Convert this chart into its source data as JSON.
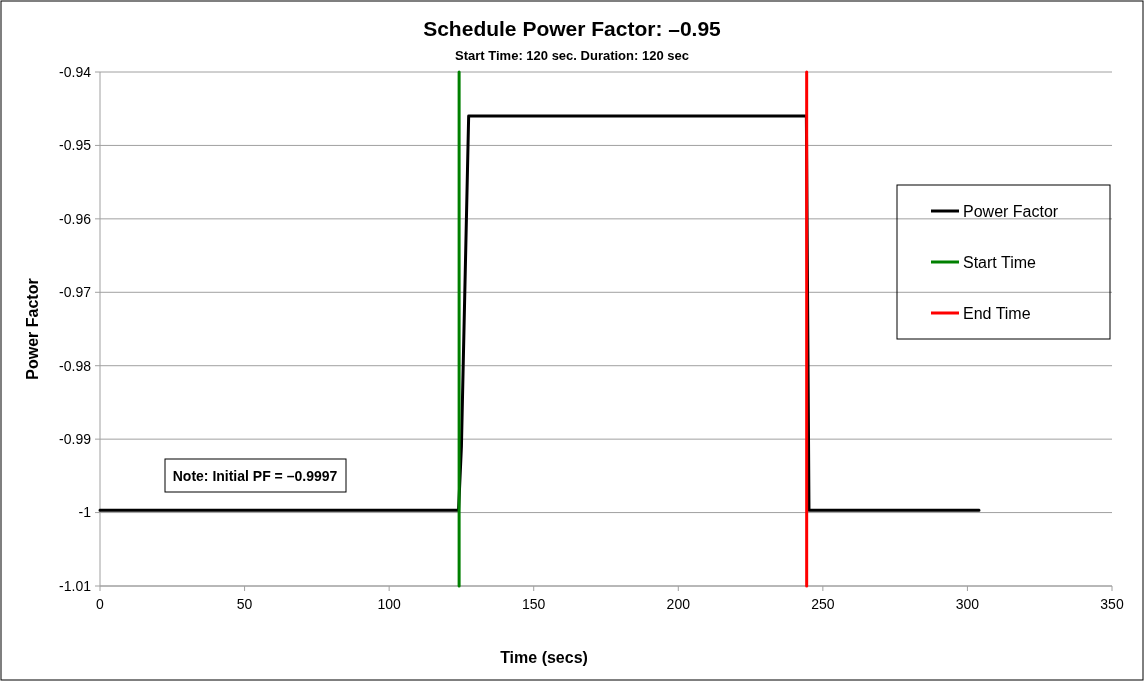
{
  "chart_data": {
    "type": "line",
    "title": "Schedule Power Factor: –0.95",
    "subtitle": "Start Time: 120 sec. Duration: 120 sec",
    "xlabel": "Time (secs)",
    "ylabel": "Power Factor",
    "series": [
      {
        "name": "Power Factor",
        "color": "#000000",
        "x": [
          0,
          124,
          125,
          127.5,
          244.3,
          245.2,
          304
        ],
        "values": [
          -0.9997,
          -0.9997,
          -0.991,
          -0.946,
          -0.946,
          -0.9997,
          -0.9997
        ]
      },
      {
        "name": "Start Time",
        "color": "#008000",
        "x": [
          124.2,
          124.2
        ],
        "values": [
          -1.01,
          -0.94
        ]
      },
      {
        "name": "End Time",
        "color": "#ff0000",
        "x": [
          244.4,
          244.4
        ],
        "values": [
          -1.01,
          -0.94
        ]
      }
    ],
    "annotations": [
      "Note: Initial PF = –0.9997"
    ],
    "xlim": [
      0,
      350
    ],
    "xticks": [
      0,
      50,
      100,
      150,
      200,
      250,
      300,
      350
    ],
    "ylim": [
      -1.01,
      -0.94
    ],
    "yticks": [
      -1.01,
      -1,
      -0.99,
      -0.98,
      -0.97,
      -0.96,
      -0.95,
      -0.94
    ],
    "grid": "y",
    "legend": "right",
    "marker": "none",
    "line_style": "solid"
  }
}
